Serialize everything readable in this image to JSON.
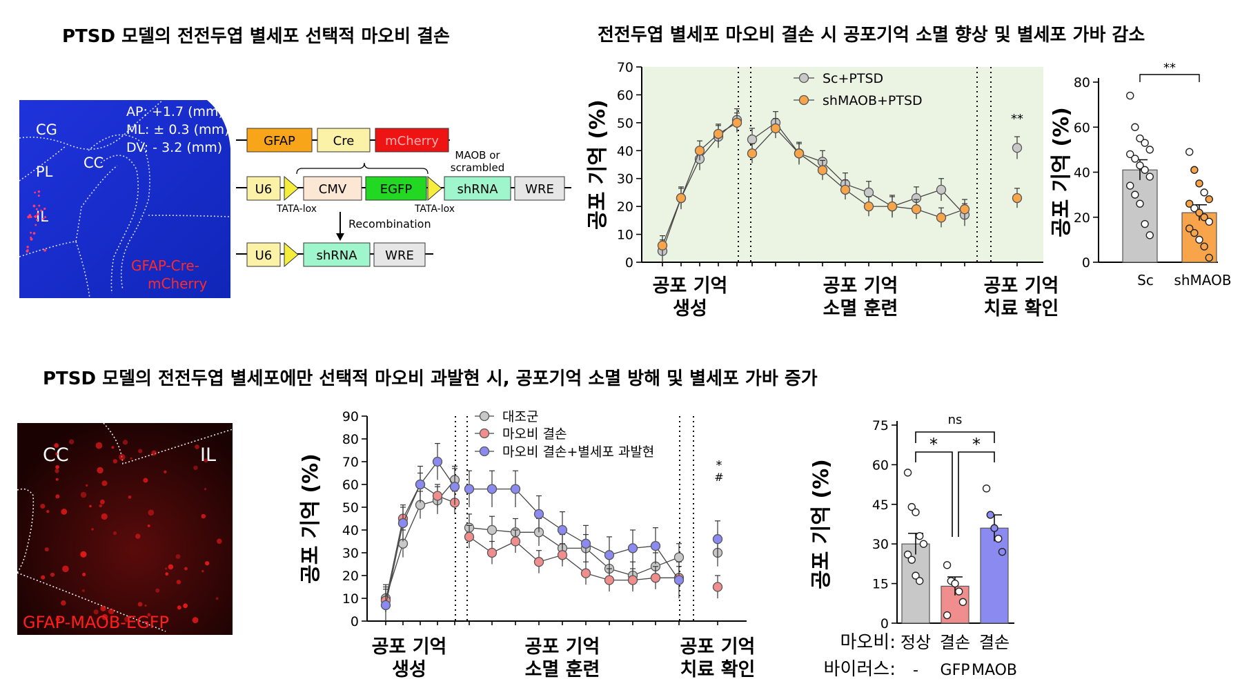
{
  "titles": {
    "top_left": "PTSD 모델의 전전두엽 별세포 선택적 마오비 결손",
    "top_right": "전전두엽 별세포 마오비 결손 시 공포기억 소멸 향상 및 별세포 가바 감소",
    "bottom": "PTSD 모델의 전전두엽 별세포에만 선택적 마오비 과발현 시, 공포기억 소멸 방해 및 별세포 가바 증가"
  },
  "micrograph_top": {
    "coords": [
      "AP: +1.7 (mm)",
      "ML: ± 0.3 (mm)",
      "DV: - 3.2 (mm)"
    ],
    "regions": [
      "CG",
      "PL",
      "IL",
      "CC"
    ],
    "label_line1": "GFAP-Cre-",
    "label_line2": "mCherry"
  },
  "constructs": {
    "row1": [
      "GFAP",
      "Cre",
      "mCherry"
    ],
    "row2": [
      "U6",
      "CMV",
      "EGFP",
      "shRNA",
      "WRE"
    ],
    "row3": [
      "U6",
      "shRNA",
      "WRE"
    ],
    "maob_line1": "MAOB or",
    "maob_line2": "scrambled",
    "tata1": "TATA-lox",
    "tata2": "TATA-lox",
    "recombination": "Recombination"
  },
  "micrograph_bottom": {
    "regions": [
      "CC",
      "IL"
    ],
    "label": "GFAP-MAOB-EGFP"
  },
  "colors": {
    "gray": "#c8c8c8",
    "orange": "#f7a44a",
    "red": "#f08d8d",
    "blue": "#8a8af0",
    "green_bg": "#ebf4e3",
    "brain_blue": "#1a2fd6"
  },
  "chart_data": [
    {
      "type": "line",
      "ylabel": "공포 기억 (%)",
      "ylim": [
        0,
        70
      ],
      "yticks": [
        "0",
        "10",
        "20",
        "30",
        "40",
        "50",
        "60",
        "70"
      ],
      "phases": [
        {
          "line1": "공포 기억",
          "line2": "생성"
        },
        {
          "line1": "공포 기억",
          "line2": "소멸 훈련"
        },
        {
          "line1": "공포 기억",
          "line2": "치료 확인"
        }
      ],
      "significance": "**",
      "series": [
        {
          "name": "Sc+PTSD",
          "acquisition": [
            4,
            23,
            37,
            45,
            51
          ],
          "extinction": [
            44,
            50,
            39,
            36,
            28,
            25,
            20,
            23,
            26,
            17
          ],
          "test": 41
        },
        {
          "name": "shMAOB+PTSD",
          "acquisition": [
            6,
            23,
            40,
            46,
            50
          ],
          "extinction": [
            39,
            48,
            39,
            33,
            26,
            20,
            20,
            19,
            16,
            19
          ],
          "test": 23
        }
      ]
    },
    {
      "type": "bar",
      "ylabel": "공포 기억 (%)",
      "ylim": [
        0,
        80
      ],
      "yticks": [
        "0",
        "20",
        "40",
        "60",
        "80"
      ],
      "categories": [
        "Sc",
        "shMAOB"
      ],
      "values": [
        41,
        22
      ],
      "sem": [
        4.5,
        3.5
      ],
      "significance": "**",
      "points": [
        [
          74,
          60,
          55,
          53,
          50,
          48,
          46,
          43,
          41,
          38,
          34,
          30,
          26,
          17,
          12
        ],
        [
          49,
          41,
          35,
          31,
          28,
          26,
          24,
          22,
          20,
          18,
          15,
          13,
          10,
          7,
          2
        ]
      ]
    },
    {
      "type": "line",
      "ylabel": "공포 기억 (%)",
      "ylim": [
        0,
        90
      ],
      "yticks": [
        "0",
        "10",
        "20",
        "30",
        "40",
        "50",
        "60",
        "70",
        "80",
        "90"
      ],
      "phases": [
        {
          "line1": "공포 기억",
          "line2": "생성"
        },
        {
          "line1": "공포 기억",
          "line2": "소멸 훈련"
        },
        {
          "line1": "공포 기억",
          "line2": "치료 확인"
        }
      ],
      "sig1": "*",
      "sig2": "#",
      "series": [
        {
          "name": "대조군",
          "acquisition": [
            10,
            34,
            51,
            53,
            62
          ],
          "extinction": [
            41,
            40,
            39,
            39,
            32,
            32,
            23,
            20,
            24,
            28
          ],
          "test": 30
        },
        {
          "name": "마오비 결손",
          "acquisition": [
            9,
            45,
            60,
            55,
            52
          ],
          "extinction": [
            37,
            30,
            35,
            26,
            29,
            21,
            18,
            18,
            19,
            19
          ],
          "test": 15
        },
        {
          "name": "마오비 결손+별세포 과발현",
          "acquisition": [
            7,
            43,
            60,
            70,
            59
          ],
          "extinction": [
            58,
            58,
            58,
            47,
            40,
            34,
            29,
            32,
            33,
            18
          ],
          "test": 36
        }
      ]
    },
    {
      "type": "bar",
      "ylabel": "공포 기억 (%)",
      "ylim": [
        0,
        75
      ],
      "yticks": [
        "0",
        "15",
        "30",
        "45",
        "60",
        "75"
      ],
      "categories": [
        "정상",
        "결손",
        "결손"
      ],
      "virus": [
        "-",
        "GFP",
        "MAOB"
      ],
      "row_label_1": "마오비:",
      "row_label_2": "바이러스:",
      "values": [
        30,
        14,
        36
      ],
      "sem": [
        4,
        3.5,
        5
      ],
      "significance": {
        "top": "ns",
        "left": "*",
        "right": "*"
      },
      "points": [
        [
          57,
          44,
          42,
          33,
          30,
          26,
          24,
          18,
          16
        ],
        [
          22,
          16,
          15,
          12,
          8,
          3
        ],
        [
          51,
          41,
          36,
          32,
          27
        ]
      ]
    }
  ]
}
